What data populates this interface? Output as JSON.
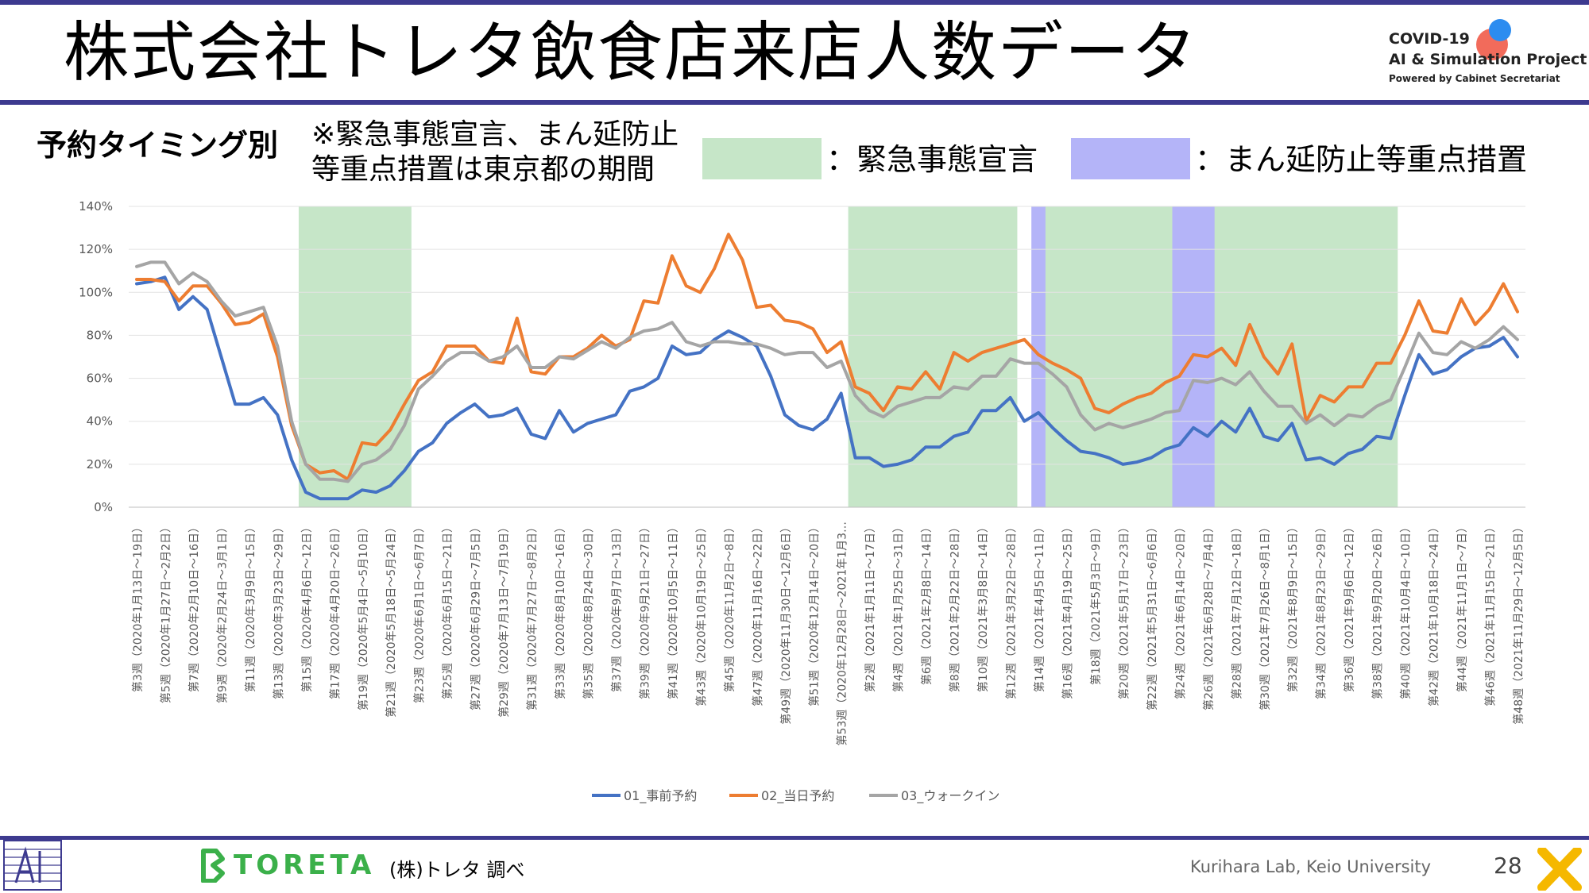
{
  "header": {
    "title": "株式会社トレタ飲食店来店人数データ",
    "logo": {
      "line1": "COVID-19",
      "line2": "AI & Simulation Project",
      "line3": "Powered by Cabinet Secretariat"
    }
  },
  "subheader": {
    "label": "予約タイミング別",
    "note_line1": "※緊急事態宣言、まん延防止",
    "note_line2": "等重点措置は東京都の期間",
    "legend_emergency": "：緊急事態宣言",
    "legend_priority": "：まん延防止等重点措置",
    "color_emergency": "#c6e6c8",
    "color_priority": "#b4b4f8"
  },
  "chart_data": {
    "type": "line",
    "ylim": [
      0,
      140
    ],
    "yticks": [
      "0%",
      "20%",
      "40%",
      "60%",
      "80%",
      "100%",
      "120%",
      "140%"
    ],
    "grid": true,
    "legend_placement": "bottom",
    "x_tick_labels": [
      "第3週（2020年1月13日～19日）",
      "第5週（2020年1月27日～2月2日）",
      "第7週（2020年2月10日～16日）",
      "第9週（2020年2月24日～3月1日）",
      "第11週（2020年3月9日～15日）",
      "第13週（2020年3月23日～29日）",
      "第15週（2020年4月6日～12日）",
      "第17週（2020年4月20日～26日）",
      "第19週（2020年5月4日～5月10日）",
      "第21週（2020年5月18日～5月24日）",
      "第23週（2020年6月1日～6月7日）",
      "第25週（2020年6月15日～21日）",
      "第27週（2020年6月29日～7月5日）",
      "第29週（2020年7月13日～7月19日）",
      "第31週（2020年7月27日～8月2日）",
      "第33週（2020年8月10日～16日）",
      "第35週（2020年8月24日～30日）",
      "第37週（2020年9月7日～13日）",
      "第39週（2020年9月21日～27日）",
      "第41週（2020年10月5日～11日）",
      "第43週（2020年10月19日～25日）",
      "第45週（2020年11月2日～8日）",
      "第47週（2020年11月16日～22日）",
      "第49週（2020年11月30日～12月6日）",
      "第51週（2020年12月14日～20日）",
      "第53週（2020年12月28日～2021年1月3…",
      "第2週（2021年1月11日～17日）",
      "第4週（2021年1月25日～31日）",
      "第6週（2021年2月8日～14日）",
      "第8週（2021年2月22日～28日）",
      "第10週（2021年3月8日～14日）",
      "第12週（2021年3月22日～28日）",
      "第14週（2021年4月5日～11日）",
      "第16週（2021年4月19日～25日）",
      "第18週（2021年5月3日～9日）",
      "第20週（2021年5月17日～23日）",
      "第22週（2021年5月31日～6月6日）",
      "第24週（2021年6月14日～20日）",
      "第26週（2021年6月28日～7月4日）",
      "第28週（2021年7月12日～18日）",
      "第30週（2021年7月26日～8月1日）",
      "第32週（2021年8月9日～15日）",
      "第34週（2021年8月23日～29日）",
      "第36週（2021年9月6日～12日）",
      "第38週（2021年9月20日～26日）",
      "第40週（2021年10月4日～10日）",
      "第42週（2021年10月18日～24日）",
      "第44週（2021年11月1日～7日）",
      "第46週（2021年11月15日～21日）",
      "第48週（2021年11月29日～12月5日）"
    ],
    "shaded_periods": [
      {
        "kind": "emergency",
        "start_index": 12,
        "end_index": 19
      },
      {
        "kind": "emergency",
        "start_index": 51,
        "end_index": 62
      },
      {
        "kind": "priority",
        "start_index": 64,
        "end_index": 65
      },
      {
        "kind": "emergency",
        "start_index": 65,
        "end_index": 74
      },
      {
        "kind": "priority",
        "start_index": 74,
        "end_index": 77
      },
      {
        "kind": "emergency",
        "start_index": 77,
        "end_index": 89
      }
    ],
    "series": [
      {
        "name": "01_事前予約",
        "color": "#4472c4",
        "values": [
          104,
          105,
          107,
          92,
          98,
          92,
          70,
          48,
          48,
          51,
          43,
          22,
          7,
          4,
          4,
          4,
          8,
          7,
          10,
          17,
          26,
          30,
          39,
          44,
          48,
          42,
          43,
          46,
          34,
          32,
          45,
          35,
          39,
          41,
          43,
          54,
          56,
          60,
          75,
          71,
          72,
          78,
          82,
          79,
          75,
          61,
          43,
          38,
          36,
          41,
          53,
          23,
          23,
          19,
          20,
          22,
          28,
          28,
          33,
          35,
          45,
          45,
          51,
          40,
          44,
          37,
          31,
          26,
          25,
          23,
          20,
          21,
          23,
          27,
          29,
          37,
          33,
          40,
          35,
          46,
          33,
          31,
          39,
          22,
          23,
          20,
          25,
          27,
          33,
          32,
          52,
          71,
          62,
          64,
          70,
          74,
          75,
          79,
          70
        ]
      },
      {
        "name": "02_当日予約",
        "color": "#ed7d31",
        "values": [
          106,
          106,
          105,
          96,
          103,
          103,
          95,
          85,
          86,
          90,
          70,
          38,
          20,
          16,
          17,
          13,
          30,
          29,
          36,
          48,
          59,
          63,
          75,
          75,
          75,
          68,
          67,
          88,
          63,
          62,
          70,
          70,
          74,
          80,
          75,
          78,
          96,
          95,
          117,
          103,
          100,
          111,
          127,
          115,
          93,
          94,
          87,
          86,
          83,
          72,
          77,
          56,
          53,
          45,
          56,
          55,
          63,
          55,
          72,
          68,
          72,
          74,
          76,
          78,
          71,
          67,
          64,
          60,
          46,
          44,
          48,
          51,
          53,
          58,
          61,
          71,
          70,
          74,
          66,
          85,
          70,
          62,
          76,
          40,
          52,
          49,
          56,
          56,
          67,
          67,
          80,
          96,
          82,
          81,
          97,
          85,
          92,
          104,
          91
        ]
      },
      {
        "name": "03_ウォークイン",
        "color": "#a5a5a5",
        "values": [
          112,
          114,
          114,
          104,
          109,
          105,
          96,
          89,
          91,
          93,
          75,
          40,
          20,
          13,
          13,
          12,
          20,
          22,
          27,
          38,
          55,
          61,
          68,
          72,
          72,
          68,
          70,
          75,
          65,
          65,
          70,
          69,
          73,
          77,
          74,
          79,
          82,
          83,
          86,
          77,
          75,
          77,
          77,
          76,
          76,
          74,
          71,
          72,
          72,
          65,
          68,
          52,
          45,
          42,
          47,
          49,
          51,
          51,
          56,
          55,
          61,
          61,
          69,
          67,
          67,
          62,
          56,
          43,
          36,
          39,
          37,
          39,
          41,
          44,
          45,
          59,
          58,
          60,
          57,
          63,
          54,
          47,
          47,
          39,
          43,
          38,
          43,
          42,
          47,
          50,
          65,
          81,
          72,
          71,
          77,
          74,
          78,
          84,
          78
        ]
      }
    ]
  },
  "footer": {
    "source": "(株)トレタ 調べ",
    "toreta_brand": "TORETA",
    "lab": "Kurihara Lab, Keio University",
    "page": "28"
  }
}
